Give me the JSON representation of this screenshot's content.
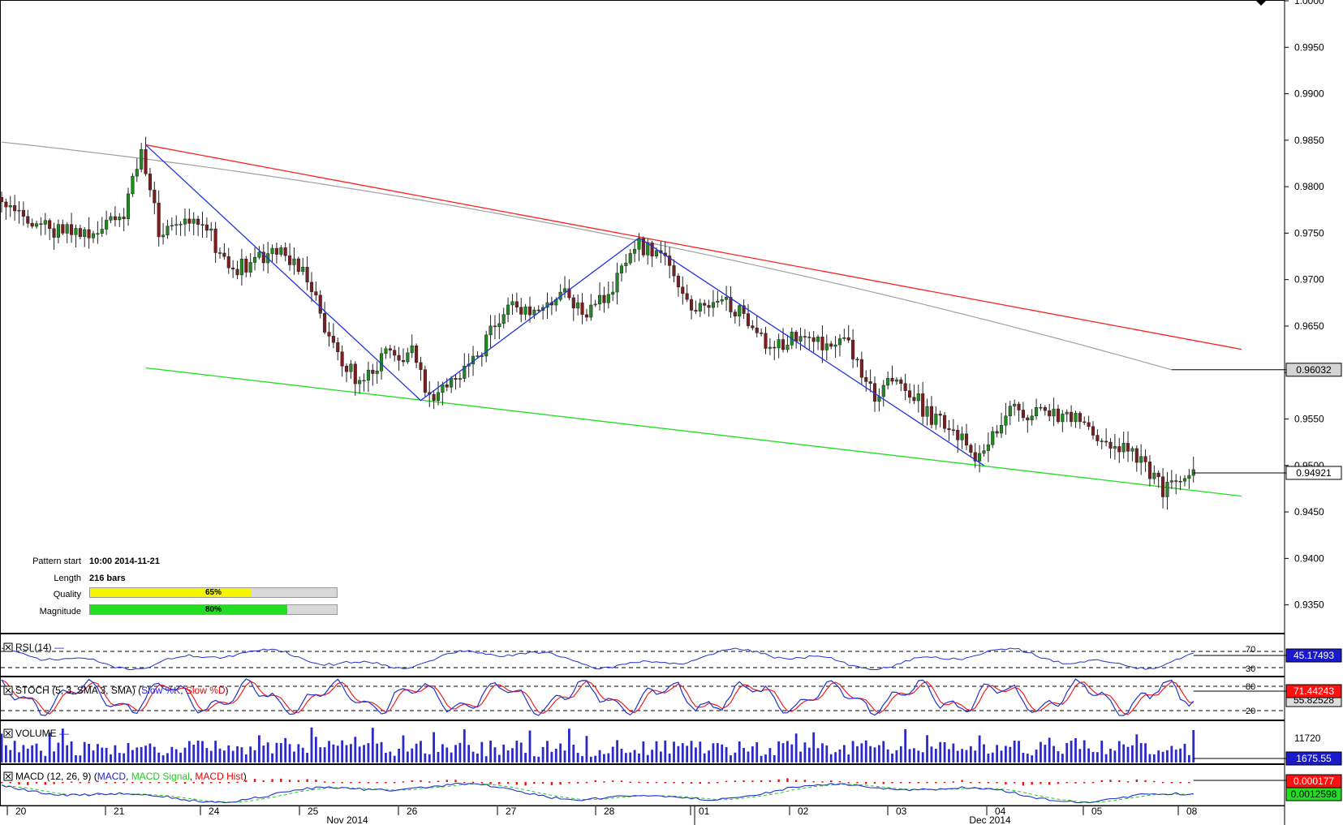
{
  "chart_data": {
    "type": "candlestick",
    "price_axis": {
      "ylim": [
        0.932,
        1.0
      ],
      "ticks": [
        "1.0000",
        "0.9950",
        "0.9900",
        "0.9850",
        "0.9800",
        "0.9750",
        "0.9700",
        "0.9650",
        "0.9600",
        "0.9550",
        "0.9500",
        "0.9450",
        "0.9400",
        "0.9350"
      ],
      "tick_values": [
        1.0,
        0.995,
        0.99,
        0.985,
        0.98,
        0.975,
        0.97,
        0.965,
        0.96,
        0.955,
        0.95,
        0.945,
        0.94,
        0.935
      ]
    },
    "price_anchors": [
      {
        "bar": 0,
        "price": 0.9775
      },
      {
        "bar": 10,
        "price": 0.9755
      },
      {
        "bar": 20,
        "price": 0.9752
      },
      {
        "bar": 28,
        "price": 0.9768
      },
      {
        "bar": 32,
        "price": 0.9842
      },
      {
        "bar": 36,
        "price": 0.9755
      },
      {
        "bar": 46,
        "price": 0.9765
      },
      {
        "bar": 52,
        "price": 0.971
      },
      {
        "bar": 58,
        "price": 0.972
      },
      {
        "bar": 64,
        "price": 0.9728
      },
      {
        "bar": 70,
        "price": 0.97
      },
      {
        "bar": 76,
        "price": 0.9628
      },
      {
        "bar": 82,
        "price": 0.959
      },
      {
        "bar": 88,
        "price": 0.962
      },
      {
        "bar": 94,
        "price": 0.962
      },
      {
        "bar": 98,
        "price": 0.9575
      },
      {
        "bar": 104,
        "price": 0.959
      },
      {
        "bar": 110,
        "price": 0.9625
      },
      {
        "bar": 116,
        "price": 0.9675
      },
      {
        "bar": 122,
        "price": 0.966
      },
      {
        "bar": 128,
        "price": 0.969
      },
      {
        "bar": 134,
        "price": 0.966
      },
      {
        "bar": 140,
        "price": 0.969
      },
      {
        "bar": 146,
        "price": 0.9738
      },
      {
        "bar": 152,
        "price": 0.972
      },
      {
        "bar": 158,
        "price": 0.966
      },
      {
        "bar": 164,
        "price": 0.968
      },
      {
        "bar": 170,
        "price": 0.966
      },
      {
        "bar": 176,
        "price": 0.9625
      },
      {
        "bar": 182,
        "price": 0.964
      },
      {
        "bar": 188,
        "price": 0.9628
      },
      {
        "bar": 194,
        "price": 0.963
      },
      {
        "bar": 200,
        "price": 0.9575
      },
      {
        "bar": 206,
        "price": 0.9595
      },
      {
        "bar": 212,
        "price": 0.9555
      },
      {
        "bar": 218,
        "price": 0.954
      },
      {
        "bar": 224,
        "price": 0.9505
      },
      {
        "bar": 230,
        "price": 0.956
      },
      {
        "bar": 236,
        "price": 0.9555
      },
      {
        "bar": 242,
        "price": 0.9555
      },
      {
        "bar": 248,
        "price": 0.9545
      },
      {
        "bar": 254,
        "price": 0.9518
      },
      {
        "bar": 260,
        "price": 0.9512
      },
      {
        "bar": 266,
        "price": 0.9475
      },
      {
        "bar": 270,
        "price": 0.948
      },
      {
        "bar": 273,
        "price": 0.9492
      }
    ],
    "bar_count": 274,
    "date_labels": [
      "20",
      "21",
      "24",
      "25",
      "26",
      "27",
      "28",
      "01",
      "02",
      "03",
      "04",
      "05",
      "08"
    ],
    "month_labels": [
      "Nov 2014",
      "Dec 2014"
    ],
    "pattern": {
      "zigzag_points": [
        {
          "bar": 33,
          "price": 0.9845
        },
        {
          "bar": 96,
          "price": 0.957
        },
        {
          "bar": 146,
          "price": 0.9745
        },
        {
          "bar": 225,
          "price": 0.95
        }
      ],
      "resistance_line": {
        "start": {
          "bar": 33,
          "price": 0.9845
        },
        "end": {
          "bar": 284,
          "price": 0.9625
        }
      },
      "support_line": {
        "start": {
          "bar": 33,
          "price": 0.9605
        },
        "end": {
          "bar": 284,
          "price": 0.9467
        }
      },
      "moving_average": {
        "start_price": 0.9848,
        "end_price": 0.9603
      }
    },
    "current_labels": {
      "ma_value": "0.96032",
      "last_price": "0.94921"
    },
    "pattern_info": {
      "pattern_start_label": "Pattern start",
      "pattern_start_value": "10:00 2014-11-21",
      "length_label": "Length",
      "length_value": "216 bars",
      "quality_label": "Quality",
      "quality_value": "65%",
      "quality_fraction": 0.65,
      "magnitude_label": "Magnitude",
      "magnitude_value": "80%",
      "magnitude_fraction": 0.8
    },
    "indicators": {
      "rsi": {
        "title": "RSI (14)",
        "level_high": "70",
        "level_low": "30",
        "value": "45.17493"
      },
      "stoch": {
        "title": "STOCH (5, 3, SMA 3, SMA)",
        "k_label": "Slow %K",
        "d_label": "Slow %D",
        "level_high": "80",
        "level_low": "20",
        "value_k": "71.44243",
        "value_d": "55.82528"
      },
      "volume": {
        "title": "VOLUME",
        "scale_label": "11720",
        "value": "1675.55"
      },
      "macd": {
        "title": "MACD (12, 26, 9)",
        "macd_label": "MACD",
        "signal_label": "MACD Signal",
        "hist_label": "MACD Hist",
        "value_main": "0.000177",
        "value_secondary": "0.0012598"
      }
    }
  },
  "colors": {
    "bull": "#1e8c1e",
    "bear": "#7a1e1e",
    "zigzag": "#2233dd",
    "resistance": "#ff2020",
    "support": "#22dd22",
    "ma": "#a0a0a0",
    "quality": "#f5f500",
    "magnitude": "#22dd22",
    "rsi": "#2233cc",
    "stoch_k": "#2233cc",
    "stoch_d": "#ee2222",
    "volume": "#2a2acc",
    "macd": "#2233cc",
    "macd_signal": "#22cc22",
    "macd_hist": "#ee1111",
    "label_blue": "#2222dd",
    "label_red": "#ee0000"
  }
}
